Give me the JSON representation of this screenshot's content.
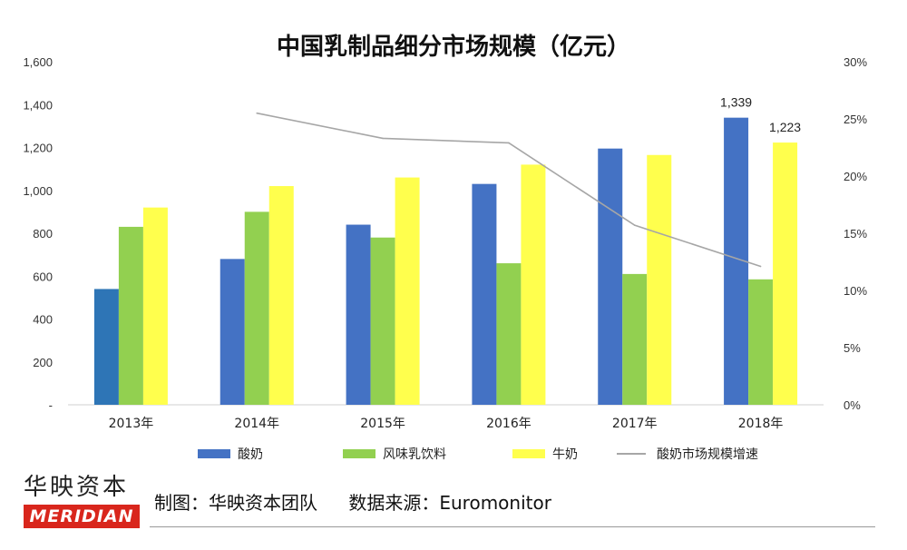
{
  "chart_data": {
    "type": "bar",
    "title": "中国乳制品细分市场规模（亿元）",
    "categories": [
      "2013年",
      "2014年",
      "2015年",
      "2016年",
      "2017年",
      "2018年"
    ],
    "series": [
      {
        "name": "酸奶",
        "type": "bar",
        "color": "#4472c4",
        "values": [
          540,
          680,
          840,
          1030,
          1195,
          1339
        ]
      },
      {
        "name": "风味乳饮料",
        "type": "bar",
        "color": "#92d050",
        "values": [
          830,
          900,
          780,
          660,
          610,
          585
        ]
      },
      {
        "name": "牛奶",
        "type": "bar",
        "color": "#ffff4d",
        "values": [
          920,
          1020,
          1060,
          1120,
          1165,
          1223
        ]
      },
      {
        "name": "酸奶市场规模增速",
        "type": "line",
        "axis": "right",
        "color": "#a6a6a6",
        "values": [
          null,
          25.5,
          23.3,
          22.9,
          15.7,
          12.1
        ]
      }
    ],
    "data_labels": [
      {
        "series": "酸奶",
        "category": "2018年",
        "text": "1,339"
      },
      {
        "series": "牛奶",
        "category": "2018年",
        "text": "1,223"
      }
    ],
    "y_left": {
      "min": 0,
      "max": 1600,
      "ticks": [
        "-",
        "200",
        "400",
        "600",
        "800",
        "1,000",
        "1,200",
        "1,400",
        "1,600"
      ]
    },
    "y_right": {
      "min": 0,
      "max": 30,
      "ticks": [
        "0%",
        "5%",
        "10%",
        "15%",
        "20%",
        "25%",
        "30%"
      ]
    },
    "legend_position": "bottom",
    "grid": false
  },
  "colors": {
    "special_bar_2013": "#2e75b6"
  },
  "footer": {
    "credit": "制图：华映资本团队",
    "source": "数据来源：Euromonitor"
  },
  "logo": {
    "cn": "华映资本",
    "en": "MERIDIAN"
  }
}
